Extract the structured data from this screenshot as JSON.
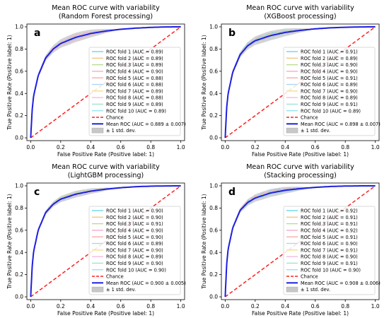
{
  "chart_data": [
    {
      "type": "line",
      "panel_letter": "a",
      "title": "Mean ROC curve with variability",
      "subtitle": "(Random Forest processing)",
      "xlabel": "False Positive Rate (Positive label: 1)",
      "ylabel": "True Positive Rate (Positive label: 1)",
      "xlim": [
        0,
        1
      ],
      "ylim": [
        0,
        1
      ],
      "xticks": [
        "0.0",
        "0.2",
        "0.4",
        "0.6",
        "0.8",
        "1.0"
      ],
      "yticks": [
        "0.0",
        "0.2",
        "0.4",
        "0.6",
        "0.8",
        "1.0"
      ],
      "grid": false,
      "legend_position": "lower-right",
      "fold_aucs": [
        "0.89",
        "0.89",
        "0.89",
        "0.90",
        "0.88",
        "0.88",
        "0.89",
        "0.88",
        "0.89",
        "0.89"
      ],
      "legend": [
        "ROC fold 1 (AUC = 0.89)",
        "ROC fold 2 (AUC = 0.89)",
        "ROC fold 3 (AUC = 0.89)",
        "ROC fold 4 (AUC = 0.90)",
        "ROC fold 5 (AUC = 0.88)",
        "ROC fold 6 (AUC = 0.88)",
        "ROC fold 7 (AUC = 0.89)",
        "ROC fold 8 (AUC = 0.88)",
        "ROC fold 9 (AUC = 0.89)",
        "ROC fold 10 (AUC = 0.89)",
        "Chance",
        "Mean ROC (AUC = 0.889 ± 0.007)",
        "± 1 std. dev."
      ],
      "mean_auc": 0.889,
      "std_auc": 0.007,
      "mean_roc": {
        "fpr": [
          0,
          0.01,
          0.02,
          0.05,
          0.1,
          0.15,
          0.2,
          0.3,
          0.4,
          0.5,
          0.6,
          0.7,
          0.8,
          0.9,
          1.0
        ],
        "tpr": [
          0,
          0.25,
          0.38,
          0.56,
          0.72,
          0.8,
          0.85,
          0.905,
          0.94,
          0.962,
          0.978,
          0.988,
          0.995,
          0.999,
          1.0
        ]
      },
      "chance": {
        "fpr": [
          0,
          1
        ],
        "tpr": [
          0,
          1
        ]
      }
    },
    {
      "type": "line",
      "panel_letter": "b",
      "title": "Mean ROC curve with variability",
      "subtitle": "(XGBoost processing)",
      "xlabel": "False Positive Rate (Positive label: 1)",
      "ylabel": "True Positive Rate (Positive label: 1)",
      "xlim": [
        0,
        1
      ],
      "ylim": [
        0,
        1
      ],
      "xticks": [
        "0.0",
        "0.2",
        "0.4",
        "0.6",
        "0.8",
        "1.0"
      ],
      "yticks": [
        "0.0",
        "0.2",
        "0.4",
        "0.6",
        "0.8",
        "1.0"
      ],
      "grid": false,
      "legend_position": "lower-right",
      "fold_aucs": [
        "0.91",
        "0.89",
        "0.90",
        "0.90",
        "0.91",
        "0.89",
        "0.90",
        "0.89",
        "0.91",
        "0.89"
      ],
      "legend": [
        "ROC fold 1 (AUC = 0.91)",
        "ROC fold 2 (AUC = 0.89)",
        "ROC fold 3 (AUC = 0.90)",
        "ROC fold 4 (AUC = 0.90)",
        "ROC fold 5 (AUC = 0.91)",
        "ROC fold 6 (AUC = 0.89)",
        "ROC fold 7 (AUC = 0.90)",
        "ROC fold 8 (AUC = 0.89)",
        "ROC fold 9 (AUC = 0.91)",
        "ROC fold 10 (AUC = 0.89)",
        "Chance",
        "Mean ROC (AUC = 0.898 ± 0.007)",
        "± 1 std. dev."
      ],
      "mean_auc": 0.898,
      "std_auc": 0.007,
      "mean_roc": {
        "fpr": [
          0,
          0.01,
          0.02,
          0.05,
          0.1,
          0.15,
          0.2,
          0.3,
          0.4,
          0.5,
          0.6,
          0.7,
          0.8,
          0.9,
          1.0
        ],
        "tpr": [
          0,
          0.27,
          0.4,
          0.59,
          0.75,
          0.83,
          0.875,
          0.92,
          0.95,
          0.968,
          0.982,
          0.991,
          0.996,
          0.999,
          1.0
        ]
      },
      "chance": {
        "fpr": [
          0,
          1
        ],
        "tpr": [
          0,
          1
        ]
      }
    },
    {
      "type": "line",
      "panel_letter": "c",
      "title": "Mean ROC curve with variability",
      "subtitle": "(LightGBM processing)",
      "xlabel": "False Positive Rate (Positive label: 1)",
      "ylabel": "True Positive Rate (Positive label: 1)",
      "xlim": [
        0,
        1
      ],
      "ylim": [
        0,
        1
      ],
      "xticks": [
        "0.0",
        "0.2",
        "0.4",
        "0.6",
        "0.8",
        "1.0"
      ],
      "yticks": [
        "0.0",
        "0.2",
        "0.4",
        "0.6",
        "0.8",
        "1.0"
      ],
      "grid": false,
      "legend_position": "lower-right",
      "fold_aucs": [
        "0.90",
        "0.90",
        "0.91",
        "0.90",
        "0.90",
        "0.89",
        "0.90",
        "0.89",
        "0.90",
        "0.90"
      ],
      "legend": [
        "ROC fold 1 (AUC = 0.90)",
        "ROC fold 2 (AUC = 0.90)",
        "ROC fold 3 (AUC = 0.91)",
        "ROC fold 4 (AUC = 0.90)",
        "ROC fold 5 (AUC = 0.90)",
        "ROC fold 6 (AUC = 0.89)",
        "ROC fold 7 (AUC = 0.90)",
        "ROC fold 8 (AUC = 0.89)",
        "ROC fold 9 (AUC = 0.90)",
        "ROC fold 10 (AUC = 0.90)",
        "Chance",
        "Mean ROC (AUC = 0.900 ± 0.005)",
        "± 1 std. dev."
      ],
      "mean_auc": 0.9,
      "std_auc": 0.005,
      "mean_roc": {
        "fpr": [
          0,
          0.01,
          0.02,
          0.05,
          0.1,
          0.15,
          0.2,
          0.3,
          0.4,
          0.5,
          0.6,
          0.7,
          0.8,
          0.9,
          1.0
        ],
        "tpr": [
          0,
          0.27,
          0.41,
          0.6,
          0.76,
          0.835,
          0.88,
          0.925,
          0.952,
          0.97,
          0.983,
          0.992,
          0.997,
          0.999,
          1.0
        ]
      },
      "chance": {
        "fpr": [
          0,
          1
        ],
        "tpr": [
          0,
          1
        ]
      }
    },
    {
      "type": "line",
      "panel_letter": "d",
      "title": "Mean ROC curve with variability",
      "subtitle": "(Stacking processing)",
      "xlabel": "False Positive Rate (Positive label: 1)",
      "ylabel": "True Positive Rate (Positive label: 1)",
      "xlim": [
        0,
        1
      ],
      "ylim": [
        0,
        1
      ],
      "xticks": [
        "0.0",
        "0.2",
        "0.4",
        "0.6",
        "0.8",
        "1.0"
      ],
      "yticks": [
        "0.0",
        "0.2",
        "0.4",
        "0.6",
        "0.8",
        "1.0"
      ],
      "grid": false,
      "legend_position": "lower-right",
      "fold_aucs": [
        "0.92",
        "0.91",
        "0.91",
        "0.92",
        "0.91",
        "0.90",
        "0.91",
        "0.90",
        "0.91",
        "0.90"
      ],
      "legend": [
        "ROC fold 1 (AUC = 0.92)",
        "ROC fold 2 (AUC = 0.91)",
        "ROC fold 3 (AUC = 0.91)",
        "ROC fold 4 (AUC = 0.92)",
        "ROC fold 5 (AUC = 0.91)",
        "ROC fold 6 (AUC = 0.90)",
        "ROC fold 7 (AUC = 0.91)",
        "ROC fold 8 (AUC = 0.90)",
        "ROC fold 9 (AUC = 0.91)",
        "ROC fold 10 (AUC = 0.90)",
        "Chance",
        "Mean ROC (AUC = 0.908 ± 0.006)",
        "± 1 std. dev."
      ],
      "mean_auc": 0.908,
      "std_auc": 0.006,
      "mean_roc": {
        "fpr": [
          0,
          0.01,
          0.02,
          0.05,
          0.1,
          0.15,
          0.2,
          0.3,
          0.4,
          0.5,
          0.6,
          0.7,
          0.8,
          0.9,
          1.0
        ],
        "tpr": [
          0,
          0.29,
          0.43,
          0.62,
          0.78,
          0.85,
          0.89,
          0.935,
          0.96,
          0.975,
          0.986,
          0.994,
          0.998,
          0.9995,
          1.0
        ]
      },
      "chance": {
        "fpr": [
          0,
          1
        ],
        "tpr": [
          0,
          1
        ]
      }
    }
  ],
  "colors": {
    "mean_roc": "#1f1fe0",
    "chance": "#ff2020",
    "std_band": "#c8c8c8",
    "folds": [
      "#5fd4e6",
      "#f3c27a",
      "#b7d98b",
      "#f4a6c9",
      "#f6a6a6",
      "#a6d8ee",
      "#f0e07a",
      "#f5b5e0",
      "#9ee3d0",
      "#8fe0f0"
    ]
  }
}
